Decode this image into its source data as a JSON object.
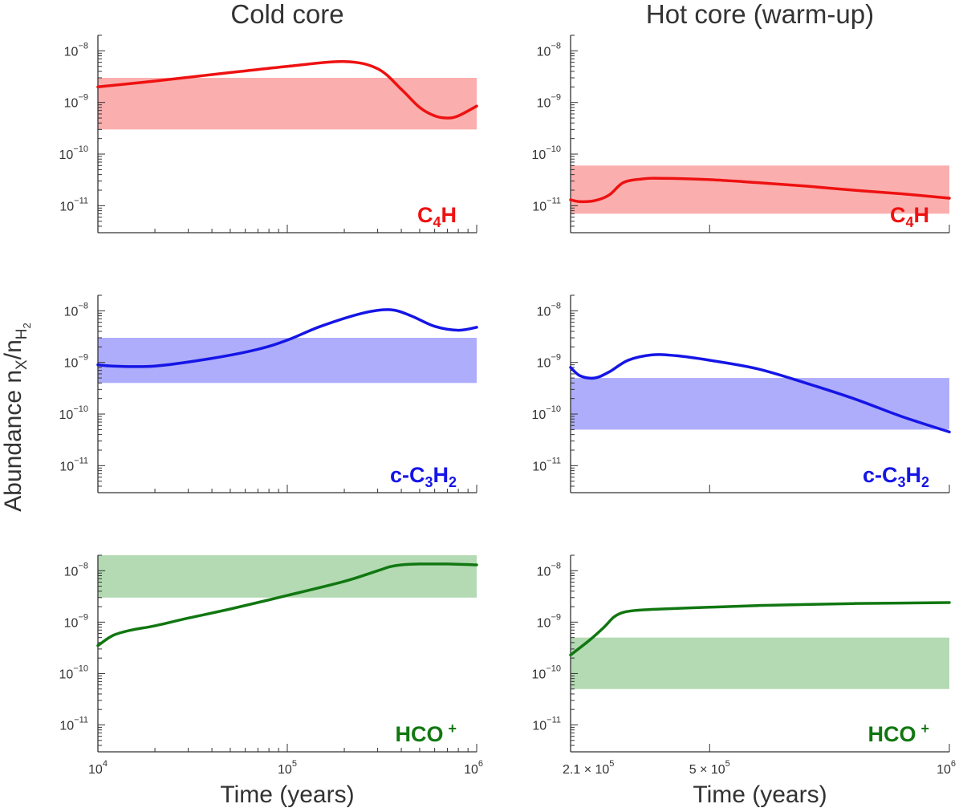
{
  "figure": {
    "column_titles": [
      "Cold core",
      "Hot core (warm-up)"
    ],
    "y_axis_label": {
      "main": "Abundance n",
      "sub1": "X",
      "sep": "/n",
      "sub2": "H",
      "sub2b": "2"
    },
    "x_axis_label": "Time (years)"
  },
  "colors": {
    "C4H": "#ee1111",
    "cC3H2": "#1515e6",
    "HCO+": "#117711",
    "band_C4H": "#fbaeae",
    "band_cC3H2": "#adadfb",
    "band_HCO+": "#b3dab3"
  },
  "chart_data": [
    {
      "id": "cold-c4h",
      "type": "line",
      "column": "Cold core",
      "species": "C4H",
      "species_label": {
        "a": "C",
        "sub": "4",
        "b": "H",
        "sup": ""
      },
      "xscale": "log",
      "xlim": [
        10000,
        1000000
      ],
      "yscale": "log",
      "ylim": [
        3e-12,
        2e-08
      ],
      "yticks": [
        "-8",
        "-9",
        "-10",
        "-11"
      ],
      "xticks": [
        {
          "base": "10",
          "exp": "4"
        },
        {
          "base": "10",
          "exp": "5"
        },
        {
          "base": "10",
          "exp": "6"
        }
      ],
      "show_xtick_labels": false,
      "band": [
        3e-10,
        3e-09
      ],
      "series": [
        {
          "name": "C4H",
          "x": [
            10000,
            20000,
            50000,
            100000,
            200000,
            300000,
            400000,
            500000,
            600000,
            700000,
            800000,
            1000000
          ],
          "y": [
            2e-09,
            2.6e-09,
            3.8e-09,
            5e-09,
            6.2e-09,
            4.5e-09,
            1.8e-09,
            8e-10,
            5.5e-10,
            5e-10,
            5.5e-10,
            8.5e-10
          ]
        }
      ]
    },
    {
      "id": "hot-c4h",
      "type": "line",
      "column": "Hot core (warm-up)",
      "species": "C4H",
      "species_label": {
        "a": "C",
        "sub": "4",
        "b": "H",
        "sup": ""
      },
      "xscale": "linear",
      "xlim": [
        210000,
        1000000
      ],
      "yscale": "log",
      "ylim": [
        3e-12,
        2e-08
      ],
      "yticks": [
        "-8",
        "-9",
        "-10",
        "-11"
      ],
      "xticks": [
        {
          "base": "2.1 × 10",
          "exp": "5"
        },
        {
          "base": "5 × 10",
          "exp": "5"
        },
        {
          "base": "10",
          "exp": "6"
        }
      ],
      "show_xtick_labels": false,
      "band": [
        7e-12,
        6e-11
      ],
      "series": [
        {
          "name": "C4H",
          "x": [
            210000,
            230000,
            260000,
            290000,
            320000,
            360000,
            400000,
            500000,
            600000,
            700000,
            800000,
            900000,
            1000000
          ],
          "y": [
            1.3e-11,
            1.2e-11,
            1.25e-11,
            1.6e-11,
            2.8e-11,
            3.3e-11,
            3.4e-11,
            3.2e-11,
            2.8e-11,
            2.4e-11,
            2e-11,
            1.7e-11,
            1.4e-11
          ]
        }
      ]
    },
    {
      "id": "cold-cc3h2",
      "type": "line",
      "column": "Cold core",
      "species": "c-C3H2",
      "species_label": {
        "a": "c-C",
        "sub": "3",
        "b": "H",
        "sub2": "2",
        "sup": ""
      },
      "xscale": "log",
      "xlim": [
        10000,
        1000000
      ],
      "yscale": "log",
      "ylim": [
        3e-12,
        2e-08
      ],
      "yticks": [
        "-8",
        "-9",
        "-10",
        "-11"
      ],
      "xticks": [
        {
          "base": "10",
          "exp": "4"
        },
        {
          "base": "10",
          "exp": "5"
        },
        {
          "base": "10",
          "exp": "6"
        }
      ],
      "show_xtick_labels": false,
      "band": [
        4e-10,
        3e-09
      ],
      "series": [
        {
          "name": "c-C3H2",
          "x": [
            10000,
            12000,
            20000,
            40000,
            70000,
            100000,
            150000,
            250000,
            350000,
            450000,
            600000,
            800000,
            1000000
          ],
          "y": [
            9e-10,
            8.5e-10,
            8.5e-10,
            1.2e-09,
            1.8e-09,
            2.7e-09,
            5e-09,
            9e-09,
            1.05e-08,
            8e-09,
            5e-09,
            4.2e-09,
            4.8e-09
          ]
        }
      ]
    },
    {
      "id": "hot-cc3h2",
      "type": "line",
      "column": "Hot core (warm-up)",
      "species": "c-C3H2",
      "species_label": {
        "a": "c-C",
        "sub": "3",
        "b": "H",
        "sub2": "2",
        "sup": ""
      },
      "xscale": "linear",
      "xlim": [
        210000,
        1000000
      ],
      "yscale": "log",
      "ylim": [
        3e-12,
        2e-08
      ],
      "yticks": [
        "-8",
        "-9",
        "-10",
        "-11"
      ],
      "xticks": [
        {
          "base": "2.1 × 10",
          "exp": "5"
        },
        {
          "base": "5 × 10",
          "exp": "5"
        },
        {
          "base": "10",
          "exp": "6"
        }
      ],
      "show_xtick_labels": false,
      "band": [
        5e-11,
        5e-10
      ],
      "series": [
        {
          "name": "c-C3H2",
          "x": [
            210000,
            230000,
            260000,
            290000,
            330000,
            380000,
            430000,
            500000,
            600000,
            700000,
            800000,
            900000,
            1000000
          ],
          "y": [
            8e-10,
            5.5e-10,
            5e-10,
            6.5e-10,
            1.1e-09,
            1.4e-09,
            1.35e-09,
            1.1e-09,
            7.5e-10,
            4e-10,
            2e-10,
            9e-11,
            4.5e-11
          ]
        }
      ]
    },
    {
      "id": "cold-hco",
      "type": "line",
      "column": "Cold core",
      "species": "HCO+",
      "species_label": {
        "a": "HCO",
        "sub": "",
        "b": "",
        "sup": "+"
      },
      "xscale": "log",
      "xlim": [
        10000,
        1000000
      ],
      "yscale": "log",
      "ylim": [
        3e-12,
        2e-08
      ],
      "yticks": [
        "-8",
        "-9",
        "-10",
        "-11"
      ],
      "xticks": [
        {
          "base": "10",
          "exp": "4"
        },
        {
          "base": "10",
          "exp": "5"
        },
        {
          "base": "10",
          "exp": "6"
        }
      ],
      "show_xtick_labels": true,
      "band": [
        3e-09,
        2e-08
      ],
      "series": [
        {
          "name": "HCO+",
          "x": [
            10000,
            12000,
            15000,
            20000,
            30000,
            50000,
            100000,
            200000,
            300000,
            350000,
            400000,
            500000,
            700000,
            1000000
          ],
          "y": [
            3.5e-10,
            5.5e-10,
            7e-10,
            8.5e-10,
            1.2e-09,
            1.8e-09,
            3.3e-09,
            6.2e-09,
            1e-08,
            1.2e-08,
            1.3e-08,
            1.35e-08,
            1.35e-08,
            1.3e-08
          ]
        }
      ]
    },
    {
      "id": "hot-hco",
      "type": "line",
      "column": "Hot core (warm-up)",
      "species": "HCO+",
      "species_label": {
        "a": "HCO",
        "sub": "",
        "b": "",
        "sup": "+"
      },
      "xscale": "linear",
      "xlim": [
        210000,
        1000000
      ],
      "yscale": "log",
      "ylim": [
        3e-12,
        2e-08
      ],
      "yticks": [
        "-8",
        "-9",
        "-10",
        "-11"
      ],
      "xticks": [
        {
          "base": "2.1 × 10",
          "exp": "5"
        },
        {
          "base": "5 × 10",
          "exp": "5"
        },
        {
          "base": "10",
          "exp": "6"
        }
      ],
      "show_xtick_labels": true,
      "band": [
        5e-11,
        5e-10
      ],
      "series": [
        {
          "name": "HCO+",
          "x": [
            210000,
            250000,
            280000,
            300000,
            320000,
            350000,
            400000,
            500000,
            600000,
            700000,
            800000,
            900000,
            1000000
          ],
          "y": [
            2.3e-10,
            4.5e-10,
            8e-10,
            1.25e-09,
            1.55e-09,
            1.7e-09,
            1.8e-09,
            1.95e-09,
            2.1e-09,
            2.2e-09,
            2.3e-09,
            2.35e-09,
            2.4e-09
          ]
        }
      ]
    }
  ]
}
